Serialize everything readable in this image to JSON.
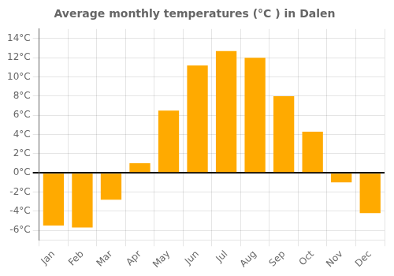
{
  "chart_data": {
    "type": "bar",
    "title": "Average monthly temperatures (°C ) in Dalen",
    "categories": [
      "Jan",
      "Feb",
      "Mar",
      "Apr",
      "May",
      "Jun",
      "Jul",
      "Aug",
      "Sep",
      "Oct",
      "Nov",
      "Dec"
    ],
    "values": [
      -5.5,
      -5.7,
      -2.8,
      1.0,
      6.5,
      11.2,
      12.7,
      12.0,
      8.0,
      4.3,
      -1.0,
      -4.2
    ],
    "color": "#FFAA00",
    "ylim": [
      -7,
      15
    ],
    "yticks": [
      {
        "value": -6,
        "label": "-6°C"
      },
      {
        "value": -4,
        "label": "-4°C"
      },
      {
        "value": -2,
        "label": "-2°C"
      },
      {
        "value": 0,
        "label": "0°C"
      },
      {
        "value": 2,
        "label": "2°C"
      },
      {
        "value": 4,
        "label": "4°C"
      },
      {
        "value": 6,
        "label": "6°C"
      },
      {
        "value": 8,
        "label": "8°C"
      },
      {
        "value": 10,
        "label": "10°C"
      },
      {
        "value": 12,
        "label": "12°C"
      },
      {
        "value": 14,
        "label": "14°C"
      }
    ],
    "grid": true
  }
}
